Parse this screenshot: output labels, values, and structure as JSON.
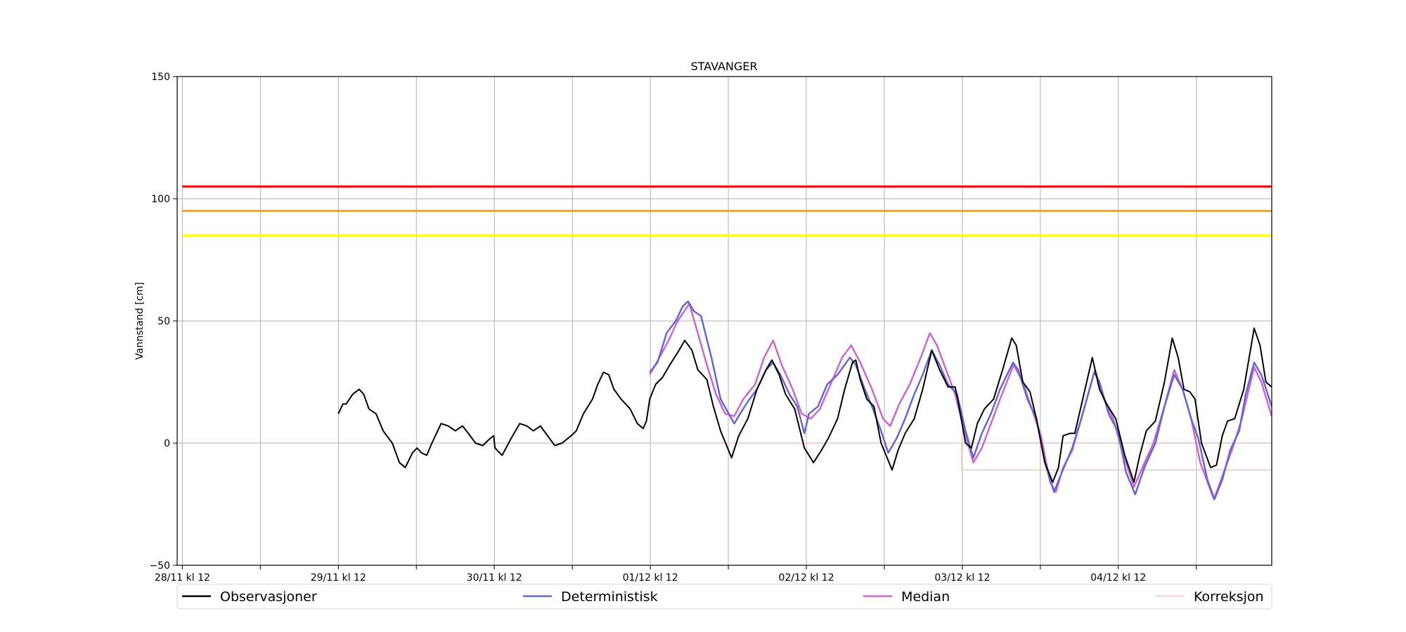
{
  "chart_data": {
    "type": "line",
    "title": "STAVANGER",
    "xlabel": "",
    "ylabel": "Vannstand [cm]",
    "x_units": "hours since 28/11 kl 12",
    "xlim": [
      -0.8,
      167.6
    ],
    "ylim": [
      -50,
      150
    ],
    "yticks": [
      -50,
      0,
      50,
      100,
      150
    ],
    "xticks": [
      0,
      12,
      24,
      36,
      48,
      60,
      72,
      84,
      96,
      108,
      120,
      132,
      144,
      156
    ],
    "xtick_labels": [
      {
        "x": 0,
        "label": "28/11 kl 12"
      },
      {
        "x": 24,
        "label": "29/11 kl 12"
      },
      {
        "x": 48,
        "label": "30/11 kl 12"
      },
      {
        "x": 72,
        "label": "01/12 kl 12"
      },
      {
        "x": 96,
        "label": "02/12 kl 12"
      },
      {
        "x": 120,
        "label": "03/12 kl 12"
      },
      {
        "x": 144,
        "label": "04/12 kl 12"
      }
    ],
    "grid": true,
    "legend_placement": "bottom",
    "thresholds": [
      {
        "value": 105,
        "color": "#ff0000"
      },
      {
        "value": 95,
        "color": "#ffa500"
      },
      {
        "value": 85,
        "color": "#ffff00"
      }
    ],
    "series": [
      {
        "name": "Observasjoner",
        "color": "#000000",
        "points": [
          [
            24.0,
            12
          ],
          [
            24.7,
            16
          ],
          [
            25.2,
            16
          ],
          [
            26.2,
            20
          ],
          [
            27.2,
            22
          ],
          [
            27.9,
            20
          ],
          [
            28.7,
            14
          ],
          [
            29.8,
            12
          ],
          [
            30.9,
            5
          ],
          [
            32.3,
            0
          ],
          [
            33.4,
            -8
          ],
          [
            34.3,
            -10
          ],
          [
            35.4,
            -4
          ],
          [
            36.1,
            -2
          ],
          [
            36.8,
            -4
          ],
          [
            37.6,
            -5
          ],
          [
            38.4,
            0
          ],
          [
            39.8,
            8
          ],
          [
            40.9,
            7
          ],
          [
            42.0,
            5
          ],
          [
            43.1,
            7
          ],
          [
            44.0,
            4
          ],
          [
            45.1,
            0
          ],
          [
            46.2,
            -1
          ],
          [
            47.4,
            2
          ],
          [
            47.9,
            3
          ],
          [
            48.1,
            -2
          ],
          [
            49.2,
            -5
          ],
          [
            50.6,
            2
          ],
          [
            51.9,
            8
          ],
          [
            53.0,
            7
          ],
          [
            54.0,
            5
          ],
          [
            55.1,
            7
          ],
          [
            56.2,
            3
          ],
          [
            57.3,
            -1
          ],
          [
            58.4,
            0
          ],
          [
            59.8,
            3
          ],
          [
            60.6,
            5
          ],
          [
            61.7,
            12
          ],
          [
            63.1,
            18
          ],
          [
            63.9,
            24
          ],
          [
            64.8,
            29
          ],
          [
            65.6,
            28
          ],
          [
            66.4,
            22
          ],
          [
            67.5,
            18
          ],
          [
            68.9,
            14
          ],
          [
            70.0,
            8
          ],
          [
            70.9,
            6
          ],
          [
            71.4,
            9
          ],
          [
            71.9,
            18
          ],
          [
            72.8,
            24
          ],
          [
            73.9,
            27
          ],
          [
            75.0,
            32
          ],
          [
            76.2,
            37
          ],
          [
            77.3,
            42
          ],
          [
            78.4,
            38
          ],
          [
            79.3,
            30
          ],
          [
            80.7,
            26
          ],
          [
            81.7,
            15
          ],
          [
            82.8,
            5
          ],
          [
            84.5,
            -6
          ],
          [
            85.6,
            3
          ],
          [
            87.0,
            10
          ],
          [
            88.4,
            22
          ],
          [
            89.8,
            30
          ],
          [
            90.7,
            34
          ],
          [
            91.8,
            28
          ],
          [
            92.8,
            20
          ],
          [
            94.2,
            14
          ],
          [
            95.7,
            -2
          ],
          [
            97.1,
            -8
          ],
          [
            98.3,
            -3
          ],
          [
            99.4,
            2
          ],
          [
            100.8,
            10
          ],
          [
            101.9,
            22
          ],
          [
            103.1,
            33
          ],
          [
            103.6,
            34
          ],
          [
            104.3,
            26
          ],
          [
            105.3,
            18
          ],
          [
            106.4,
            15
          ],
          [
            107.5,
            0
          ],
          [
            109.2,
            -11
          ],
          [
            110.1,
            -3
          ],
          [
            111.2,
            4
          ],
          [
            112.6,
            10
          ],
          [
            113.9,
            22
          ],
          [
            115.3,
            38
          ],
          [
            116.5,
            30
          ],
          [
            117.8,
            23
          ],
          [
            118.9,
            23
          ],
          [
            119.7,
            12
          ],
          [
            120.5,
            0
          ],
          [
            121.4,
            -2
          ],
          [
            122.3,
            8
          ],
          [
            123.4,
            14
          ],
          [
            124.8,
            18
          ],
          [
            126.2,
            30
          ],
          [
            127.6,
            43
          ],
          [
            128.3,
            40
          ],
          [
            129.3,
            25
          ],
          [
            130.4,
            21
          ],
          [
            131.4,
            10
          ],
          [
            132.7,
            -8
          ],
          [
            133.9,
            -16
          ],
          [
            134.8,
            -10
          ],
          [
            135.5,
            3
          ],
          [
            136.6,
            4
          ],
          [
            137.3,
            4
          ],
          [
            138.7,
            20
          ],
          [
            140.0,
            35
          ],
          [
            141.1,
            22
          ],
          [
            142.2,
            16
          ],
          [
            143.6,
            10
          ],
          [
            145.0,
            -5
          ],
          [
            146.4,
            -16
          ],
          [
            147.3,
            -5
          ],
          [
            148.3,
            5
          ],
          [
            149.7,
            9
          ],
          [
            151.1,
            25
          ],
          [
            152.3,
            43
          ],
          [
            153.2,
            35
          ],
          [
            154.1,
            22
          ],
          [
            155.0,
            21
          ],
          [
            155.8,
            18
          ],
          [
            156.8,
            0
          ],
          [
            158.2,
            -10
          ],
          [
            159.1,
            -9
          ],
          [
            160.0,
            3
          ],
          [
            160.8,
            9
          ],
          [
            161.9,
            10
          ],
          [
            163.3,
            22
          ],
          [
            164.9,
            47
          ],
          [
            165.8,
            40
          ],
          [
            166.7,
            25
          ],
          [
            167.6,
            23
          ]
        ]
      },
      {
        "name": "Deterministisk",
        "color": "#6666cc",
        "points": [
          [
            71.9,
            29
          ],
          [
            73.1,
            33
          ],
          [
            74.5,
            45
          ],
          [
            75.9,
            50
          ],
          [
            77.0,
            56
          ],
          [
            77.8,
            58
          ],
          [
            78.7,
            54
          ],
          [
            79.8,
            52
          ],
          [
            81.4,
            35
          ],
          [
            82.8,
            18
          ],
          [
            84.9,
            8
          ],
          [
            85.8,
            12
          ],
          [
            87.0,
            17
          ],
          [
            88.4,
            22
          ],
          [
            89.8,
            30
          ],
          [
            90.9,
            33
          ],
          [
            92.0,
            28
          ],
          [
            93.4,
            20
          ],
          [
            94.6,
            15
          ],
          [
            95.7,
            4
          ],
          [
            96.4,
            12
          ],
          [
            97.8,
            15
          ],
          [
            99.2,
            24
          ],
          [
            100.8,
            28
          ],
          [
            102.7,
            35
          ],
          [
            103.6,
            32
          ],
          [
            105.0,
            22
          ],
          [
            106.1,
            15
          ],
          [
            107.5,
            5
          ],
          [
            108.6,
            -4
          ],
          [
            109.9,
            2
          ],
          [
            111.2,
            10
          ],
          [
            112.6,
            20
          ],
          [
            113.9,
            28
          ],
          [
            115.3,
            38
          ],
          [
            116.5,
            32
          ],
          [
            117.8,
            24
          ],
          [
            119.2,
            20
          ],
          [
            120.5,
            5
          ],
          [
            121.7,
            -6
          ],
          [
            123.0,
            4
          ],
          [
            124.4,
            12
          ],
          [
            125.8,
            22
          ],
          [
            127.8,
            33
          ],
          [
            128.6,
            30
          ],
          [
            130.0,
            18
          ],
          [
            131.4,
            10
          ],
          [
            132.7,
            -8
          ],
          [
            134.1,
            -20
          ],
          [
            135.3,
            -12
          ],
          [
            136.9,
            -2
          ],
          [
            138.3,
            10
          ],
          [
            140.3,
            29
          ],
          [
            141.1,
            25
          ],
          [
            142.5,
            12
          ],
          [
            143.9,
            5
          ],
          [
            145.2,
            -12
          ],
          [
            146.6,
            -21
          ],
          [
            148.0,
            -10
          ],
          [
            149.7,
            0
          ],
          [
            151.1,
            15
          ],
          [
            152.6,
            28
          ],
          [
            153.9,
            22
          ],
          [
            155.2,
            10
          ],
          [
            156.3,
            2
          ],
          [
            157.7,
            -15
          ],
          [
            158.8,
            -23
          ],
          [
            160.0,
            -15
          ],
          [
            161.2,
            -3
          ],
          [
            162.6,
            5
          ],
          [
            163.6,
            20
          ],
          [
            164.9,
            33
          ],
          [
            166.0,
            28
          ],
          [
            167.6,
            15
          ]
        ]
      },
      {
        "name": "Median",
        "color": "#cc66cc",
        "points": [
          [
            71.9,
            28
          ],
          [
            73.4,
            35
          ],
          [
            74.8,
            42
          ],
          [
            76.2,
            50
          ],
          [
            78.0,
            57
          ],
          [
            79.3,
            45
          ],
          [
            80.7,
            32
          ],
          [
            82.1,
            20
          ],
          [
            83.5,
            12
          ],
          [
            84.9,
            11
          ],
          [
            86.3,
            18
          ],
          [
            88.1,
            24
          ],
          [
            89.5,
            35
          ],
          [
            90.9,
            42
          ],
          [
            92.2,
            32
          ],
          [
            93.9,
            22
          ],
          [
            95.3,
            12
          ],
          [
            96.7,
            10
          ],
          [
            98.1,
            14
          ],
          [
            99.4,
            22
          ],
          [
            101.5,
            35
          ],
          [
            102.9,
            40
          ],
          [
            104.3,
            33
          ],
          [
            106.1,
            22
          ],
          [
            107.8,
            10
          ],
          [
            108.9,
            7
          ],
          [
            110.3,
            16
          ],
          [
            111.9,
            24
          ],
          [
            113.6,
            35
          ],
          [
            115.0,
            45
          ],
          [
            116.1,
            40
          ],
          [
            117.5,
            30
          ],
          [
            118.9,
            20
          ],
          [
            120.3,
            5
          ],
          [
            121.7,
            -8
          ],
          [
            123.0,
            -2
          ],
          [
            124.4,
            8
          ],
          [
            125.8,
            18
          ],
          [
            127.9,
            32
          ],
          [
            129.3,
            25
          ],
          [
            130.7,
            14
          ],
          [
            132.1,
            3
          ],
          [
            133.5,
            -16
          ],
          [
            134.4,
            -20
          ],
          [
            135.5,
            -10
          ],
          [
            136.9,
            -3
          ],
          [
            138.3,
            10
          ],
          [
            140.4,
            30
          ],
          [
            141.8,
            18
          ],
          [
            143.2,
            10
          ],
          [
            144.6,
            -3
          ],
          [
            146.4,
            -18
          ],
          [
            147.7,
            -10
          ],
          [
            149.4,
            0
          ],
          [
            151.1,
            15
          ],
          [
            152.6,
            30
          ],
          [
            153.9,
            22
          ],
          [
            155.2,
            10
          ],
          [
            156.6,
            -8
          ],
          [
            158.7,
            -23
          ],
          [
            160.2,
            -12
          ],
          [
            161.6,
            -2
          ],
          [
            163.0,
            10
          ],
          [
            164.9,
            31
          ],
          [
            166.0,
            25
          ],
          [
            167.6,
            11
          ]
        ]
      },
      {
        "name": "Korreksjon",
        "color": "#f0c4c4",
        "points": [
          [
            71.9,
            0
          ],
          [
            119.9,
            0
          ],
          [
            119.9,
            -11
          ],
          [
            167.6,
            -11
          ]
        ]
      }
    ]
  }
}
